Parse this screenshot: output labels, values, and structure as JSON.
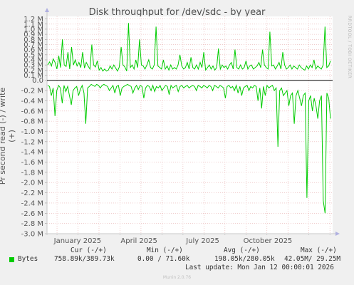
{
  "title": "Disk throughput for /dev/sdc - by year",
  "side_label": "RRDTOOL / TOBI OETIKER",
  "colors": {
    "background": "#f0f0f0",
    "plot": "#ffffff",
    "series": "#00cc00",
    "grid": "#e8b0b0",
    "axis": "#000000"
  },
  "chart_data": {
    "type": "line",
    "title": "Disk throughput for /dev/sdc - by year",
    "ylabel": "Pr second read (-) / write (+)",
    "xlabel": "",
    "ylim": [
      -3.0,
      1.25
    ],
    "y_unit": "M",
    "y_ticks": [
      "1.2 M",
      "1.1 M",
      "1.0 M",
      "0.9 M",
      "0.8 M",
      "0.7 M",
      "0.6 M",
      "0.5 M",
      "0.4 M",
      "0.3 M",
      "0.2 M",
      "0.1 M",
      "0.0",
      "-0.2 M",
      "-0.4 M",
      "-0.6 M",
      "-0.8 M",
      "-1.0 M",
      "-1.2 M",
      "-1.4 M",
      "-1.6 M",
      "-1.8 M",
      "-2.0 M",
      "-2.2 M",
      "-2.4 M",
      "-2.6 M",
      "-2.8 M",
      "-3.0 M"
    ],
    "y_tick_values": [
      1.2,
      1.1,
      1.0,
      0.9,
      0.8,
      0.7,
      0.6,
      0.5,
      0.4,
      0.3,
      0.2,
      0.1,
      0.0,
      -0.2,
      -0.4,
      -0.6,
      -0.8,
      -1.0,
      -1.2,
      -1.4,
      -1.6,
      -1.8,
      -2.0,
      -2.2,
      -2.4,
      -2.6,
      -2.8,
      -3.0
    ],
    "x_ticks": [
      {
        "label": "January 2025",
        "t": 0.107
      },
      {
        "label": "April 2025",
        "t": 0.322
      },
      {
        "label": "July 2025",
        "t": 0.545
      },
      {
        "label": "October 2025",
        "t": 0.773
      }
    ],
    "series": [
      {
        "name": "Bytes",
        "write_values": [
          0.3,
          0.36,
          0.28,
          0.42,
          0.35,
          0.22,
          0.48,
          0.25,
          0.8,
          0.3,
          0.27,
          0.55,
          0.22,
          0.65,
          0.3,
          0.4,
          0.28,
          0.35,
          0.25,
          0.55,
          0.24,
          0.35,
          0.28,
          0.22,
          0.7,
          0.3,
          0.26,
          0.38,
          0.2,
          0.25,
          0.18,
          0.22,
          0.18,
          0.2,
          0.28,
          0.22,
          0.3,
          0.24,
          0.18,
          0.26,
          0.65,
          0.3,
          0.26,
          0.18,
          1.12,
          0.25,
          0.3,
          0.22,
          0.4,
          0.25,
          0.8,
          0.3,
          0.28,
          0.22,
          0.3,
          0.4,
          0.25,
          0.22,
          0.3,
          1.05,
          0.28,
          0.25,
          0.22,
          0.4,
          0.22,
          0.28,
          0.2,
          0.3,
          0.22,
          0.25,
          0.22,
          0.3,
          0.5,
          0.28,
          0.22,
          0.25,
          0.35,
          0.22,
          0.45,
          0.25,
          0.22,
          0.3,
          0.22,
          0.35,
          0.25,
          0.55,
          0.2,
          0.25,
          0.3,
          0.22,
          0.28,
          0.2,
          0.25,
          0.62,
          0.22,
          0.3,
          0.25,
          0.28,
          0.22,
          0.3,
          0.35,
          0.22,
          0.6,
          0.25,
          0.22,
          0.3,
          0.22,
          0.25,
          0.38,
          0.22,
          0.28,
          0.3,
          0.22,
          0.25,
          0.28,
          0.35,
          0.25,
          0.6,
          0.3,
          0.25,
          0.22,
          0.95,
          0.28,
          0.3,
          0.22,
          0.28,
          0.35,
          0.22,
          0.55,
          0.3,
          0.22,
          0.25,
          0.3,
          0.22,
          0.28,
          0.25,
          0.22,
          0.3,
          0.25,
          0.22,
          0.2,
          0.28,
          0.22,
          0.3,
          0.25,
          0.4,
          0.22,
          0.28,
          0.25,
          0.22,
          0.3,
          1.05,
          0.25,
          0.28,
          0.38
        ],
        "read_values": [
          -0.1,
          -0.12,
          -0.3,
          -0.15,
          -0.7,
          -0.2,
          -0.1,
          -0.15,
          -0.45,
          -0.1,
          -0.22,
          -0.12,
          -0.3,
          -0.48,
          -0.2,
          -0.15,
          -0.12,
          -0.3,
          -0.18,
          -0.1,
          -0.25,
          -0.85,
          -0.15,
          -0.12,
          -0.08,
          -0.1,
          -0.12,
          -0.08,
          -0.1,
          -0.15,
          -0.1,
          -0.08,
          -0.1,
          -0.12,
          -0.2,
          -0.15,
          -0.1,
          -0.25,
          -0.12,
          -0.1,
          -0.3,
          -0.15,
          -0.12,
          -0.1,
          -0.08,
          -0.1,
          -0.12,
          -0.25,
          -0.15,
          -0.1,
          -0.18,
          -0.1,
          -0.12,
          -0.35,
          -0.15,
          -0.1,
          -0.12,
          -0.2,
          -0.1,
          -0.22,
          -0.12,
          -0.15,
          -0.1,
          -0.2,
          -0.15,
          -0.1,
          -0.12,
          -0.28,
          -0.1,
          -0.15,
          -0.12,
          -0.1,
          -0.22,
          -0.12,
          -0.1,
          -0.15,
          -0.12,
          -0.1,
          -0.15,
          -0.12,
          -0.1,
          -0.12,
          -0.2,
          -0.1,
          -0.12,
          -0.15,
          -0.1,
          -0.12,
          -0.15,
          -0.1,
          -0.12,
          -0.2,
          -0.1,
          -0.12,
          -0.15,
          -0.1,
          -0.12,
          -0.15,
          -0.35,
          -0.12,
          -0.1,
          -0.15,
          -0.12,
          -0.2,
          -0.1,
          -0.25,
          -0.12,
          -0.3,
          -0.15,
          -0.12,
          -0.1,
          -0.2,
          -0.12,
          -0.15,
          -0.1,
          -0.12,
          -0.4,
          -0.15,
          -0.55,
          -0.12,
          -0.3,
          -0.1,
          -0.15,
          -0.12,
          -0.1,
          -0.2,
          -0.15,
          -1.3,
          -0.2,
          -0.15,
          -0.3,
          -0.25,
          -0.2,
          -0.5,
          -0.3,
          -0.25,
          -0.85,
          -0.3,
          -0.2,
          -0.35,
          -0.5,
          -0.3,
          -0.25,
          -2.3,
          -0.4,
          -0.3,
          -0.6,
          -0.35,
          -0.5,
          -0.75,
          -0.4,
          -0.3,
          -2.35,
          -2.6,
          -0.25,
          -0.35,
          -0.75
        ]
      }
    ]
  },
  "legend": {
    "series_name": "Bytes",
    "headers": {
      "cur": "Cur (-/+)",
      "min": "Min (-/+)",
      "avg": "Avg (-/+)",
      "max": "Max (-/+)"
    },
    "values": {
      "cur": "758.89k/389.73k",
      "min": "0.00 / 71.60k",
      "avg": "198.05k/280.05k",
      "max": "42.05M/ 29.25M"
    },
    "last_update": "Last update: Mon Jan 12 00:00:01 2026"
  },
  "footer": "Munin 2.0.76"
}
